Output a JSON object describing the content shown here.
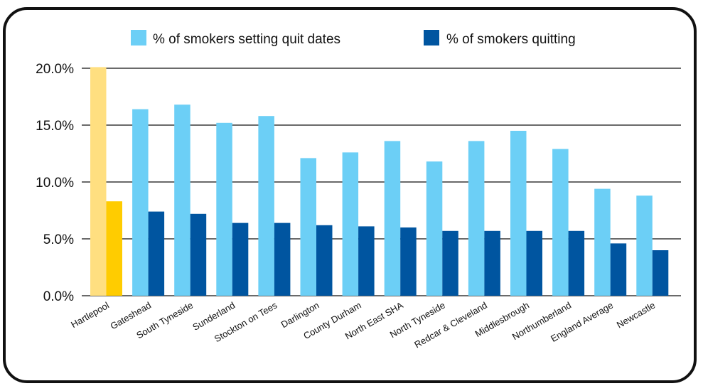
{
  "chart_data": {
    "type": "bar",
    "categories": [
      "Hartlepool",
      "Gateshead",
      "South Tyneside",
      "Sunderland",
      "Stockton on Tees",
      "Darlington",
      "County Durham",
      "North East SHA",
      "North Tyneside",
      "Redcar & Cleveland",
      "Middlesbrough",
      "Northumberland",
      "England Average",
      "Newcastle"
    ],
    "series": [
      {
        "name": "% of smokers setting quit dates",
        "color": "#6ccff6",
        "values": [
          20.1,
          16.4,
          16.8,
          15.2,
          15.8,
          12.1,
          12.6,
          13.6,
          11.8,
          13.6,
          14.5,
          12.9,
          9.4,
          8.8
        ]
      },
      {
        "name": "% of smokers quitting",
        "color": "#0055a0",
        "values": [
          8.3,
          7.4,
          7.2,
          6.4,
          6.4,
          6.2,
          6.1,
          6.0,
          5.7,
          5.7,
          5.7,
          5.7,
          4.6,
          4.0
        ]
      }
    ],
    "highlight": {
      "category": "Hartlepool",
      "colors": [
        "#ffdf80",
        "#ffcc00"
      ]
    },
    "yticks": [
      "0.0%",
      "5.0%",
      "10.0%",
      "15.0%",
      "20.0%"
    ],
    "ylim": [
      0,
      20
    ],
    "grid": true,
    "legend_position": "top"
  }
}
